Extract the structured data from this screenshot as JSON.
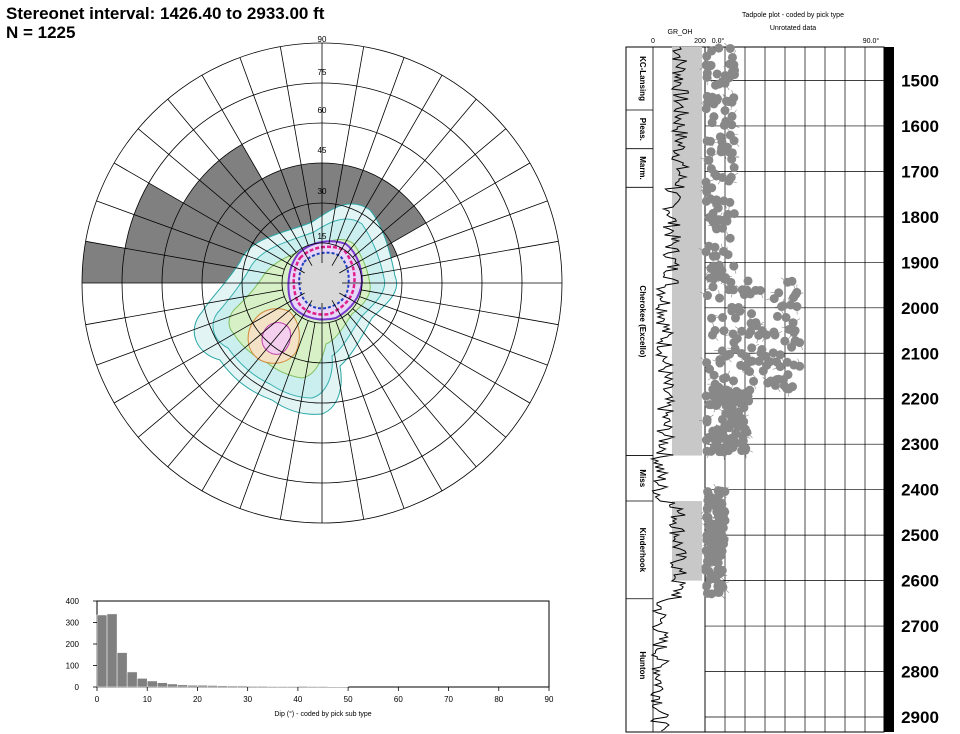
{
  "header": {
    "line1": "Stereonet interval: 1426.40 to 2933.00 ft",
    "line2": "N = 1225"
  },
  "stereonet": {
    "dip_labels": [
      "90",
      "75",
      "60",
      "45",
      "30",
      "15"
    ]
  },
  "chart_data": [
    {
      "type": "bar",
      "xlabel": "Dip (°) - coded by pick sub type",
      "xlim": [
        0,
        90
      ],
      "ylim": [
        0,
        400
      ],
      "x_ticks": [
        "0",
        "10",
        "20",
        "30",
        "40",
        "50",
        "60",
        "70",
        "80",
        "90"
      ],
      "y_ticks": [
        "0",
        "100",
        "200",
        "300",
        "400"
      ],
      "bin_width": 2,
      "bin_starts": [
        0,
        2,
        4,
        6,
        8,
        10,
        12,
        14,
        16,
        18,
        20,
        22,
        24,
        26,
        28,
        30,
        32,
        34,
        36,
        38,
        40,
        42,
        44,
        46,
        48
      ],
      "values": [
        335,
        340,
        160,
        70,
        40,
        28,
        20,
        14,
        10,
        8,
        8,
        7,
        6,
        5,
        5,
        4,
        4,
        3,
        3,
        3,
        4,
        3,
        3,
        2,
        2
      ],
      "color": "#808080"
    },
    {
      "type": "scatter",
      "title": "Tadpole plot - coded by pick type",
      "subtitle": "Unrotated data",
      "track_label": "GR_OH",
      "gr_range": [
        "0",
        "200"
      ],
      "dip_range": [
        "0.0°",
        "90.0°"
      ],
      "depth_range": [
        1426.4,
        2933.0
      ],
      "depth_labels": [
        "1500",
        "1600",
        "1700",
        "1800",
        "1900",
        "2000",
        "2100",
        "2200",
        "2300",
        "2400",
        "2500",
        "2600",
        "2700",
        "2800",
        "2900"
      ],
      "formations": [
        {
          "name": "KC-Lansing",
          "top": 1426,
          "base": 1565
        },
        {
          "name": "Pleas.",
          "top": 1565,
          "base": 1650
        },
        {
          "name": "Marm.",
          "top": 1650,
          "base": 1735
        },
        {
          "name": "Cherokee (Excello)",
          "top": 1735,
          "base": 2325
        },
        {
          "name": "Miss",
          "top": 2325,
          "base": 2425
        },
        {
          "name": "Kinderhook",
          "top": 2425,
          "base": 2640
        },
        {
          "name": "Hunton",
          "top": 2640,
          "base": 2933
        }
      ]
    }
  ]
}
